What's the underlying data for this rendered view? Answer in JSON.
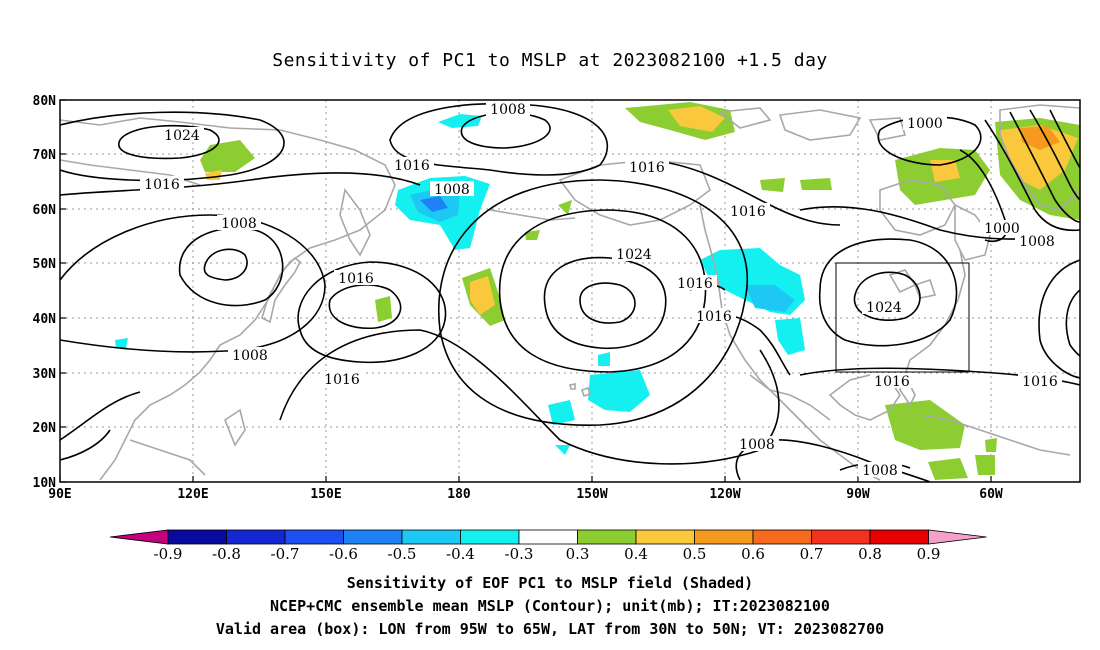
{
  "title": "Sensitivity of PC1 to MSLP at 2023082100 +1.5 day",
  "lat_labels": [
    "80N",
    "70N",
    "60N",
    "50N",
    "40N",
    "30N",
    "20N",
    "10N"
  ],
  "lon_labels": [
    "90E",
    "120E",
    "150E",
    "180",
    "150W",
    "120W",
    "90W",
    "60W"
  ],
  "contour_labels": [
    {
      "text": "1008",
      "id": "c1"
    },
    {
      "text": "1024",
      "id": "c2"
    },
    {
      "text": "1016",
      "id": "c3"
    },
    {
      "text": "1016",
      "id": "c4"
    },
    {
      "text": "1008",
      "id": "c5"
    },
    {
      "text": "1008",
      "id": "c6"
    },
    {
      "text": "1016",
      "id": "c7"
    },
    {
      "text": "1016",
      "id": "c8"
    },
    {
      "text": "1024",
      "id": "c9"
    },
    {
      "text": "1016",
      "id": "c10"
    },
    {
      "text": "1016",
      "id": "c11"
    },
    {
      "text": "1008",
      "id": "c12"
    },
    {
      "text": "1016",
      "id": "c13"
    },
    {
      "text": "1000",
      "id": "c14"
    },
    {
      "text": "1000",
      "id": "c15"
    },
    {
      "text": "1008",
      "id": "c16"
    },
    {
      "text": "1024",
      "id": "c17"
    },
    {
      "text": "1016",
      "id": "c18"
    },
    {
      "text": "1016",
      "id": "c19"
    },
    {
      "text": "1008",
      "id": "c20"
    },
    {
      "text": "1008",
      "id": "c21"
    },
    {
      "text": "1016",
      "id": "c22"
    }
  ],
  "colorbar": {
    "labels": [
      "-0.9",
      "-0.8",
      "-0.7",
      "-0.6",
      "-0.5",
      "-0.4",
      "-0.3",
      "0.3",
      "0.4",
      "0.5",
      "0.6",
      "0.7",
      "0.8",
      "0.9"
    ],
    "colors": [
      "#c4007c",
      "#0a0a9e",
      "#1428d2",
      "#1e50f0",
      "#1e82f5",
      "#1ec8f5",
      "#14f0f0",
      "#ffffff",
      "#8ccd32",
      "#fac83c",
      "#f59a1e",
      "#f56a1e",
      "#f0321e",
      "#e60000",
      "#f5a0c8"
    ]
  },
  "caption_line1": "Sensitivity of EOF PC1 to MSLP field (Shaded)",
  "caption_line2": "NCEP+CMC ensemble mean MSLP (Contour); unit(mb); IT:2023082100",
  "caption_line3": "Valid area (box): LON from 95W to 65W, LAT from 30N to 50N; VT: 2023082700",
  "colors": {
    "coast": "#a8a8a8",
    "contour": "#000000",
    "grid": "#999999"
  }
}
